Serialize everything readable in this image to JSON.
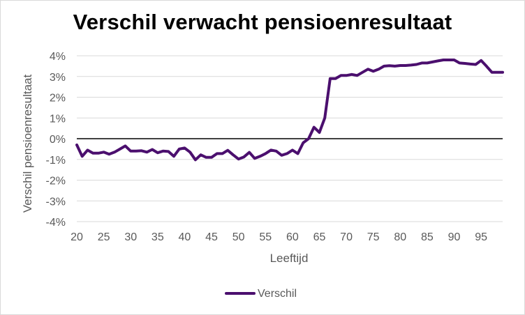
{
  "chart_data": {
    "type": "line",
    "title": "Verschil verwacht pensioenresultaat",
    "xlabel": "Leeftijd",
    "ylabel": "Verschil pensioenresultaat",
    "xlim": [
      20,
      99
    ],
    "ylim": [
      -0.04,
      0.04
    ],
    "x_ticks": [
      20,
      25,
      30,
      35,
      40,
      45,
      50,
      55,
      60,
      65,
      70,
      75,
      80,
      85,
      90,
      95
    ],
    "x_tick_labels": [
      "20",
      "25",
      "30",
      "35",
      "40",
      "45",
      "50",
      "55",
      "60",
      "65",
      "70",
      "75",
      "80",
      "85",
      "90",
      "95"
    ],
    "y_ticks": [
      0.04,
      0.03,
      0.02,
      0.01,
      0,
      -0.01,
      -0.02,
      -0.03,
      -0.04
    ],
    "y_tick_labels": [
      "4%",
      "3%",
      "2%",
      "1%",
      "0%",
      "-1%",
      "-2%",
      "-3%",
      "-4%"
    ],
    "grid": "horizontal",
    "zero_line": true,
    "legend_position": "bottom",
    "series": [
      {
        "name": "Verschil",
        "color": "#4b0f6e",
        "x": [
          20,
          21,
          22,
          23,
          24,
          25,
          26,
          27,
          28,
          29,
          30,
          31,
          32,
          33,
          34,
          35,
          36,
          37,
          38,
          39,
          40,
          41,
          42,
          43,
          44,
          45,
          46,
          47,
          48,
          49,
          50,
          51,
          52,
          53,
          54,
          55,
          56,
          57,
          58,
          59,
          60,
          61,
          62,
          63,
          64,
          65,
          66,
          67,
          68,
          69,
          70,
          71,
          72,
          73,
          74,
          75,
          76,
          77,
          78,
          79,
          80,
          81,
          82,
          83,
          84,
          85,
          86,
          87,
          88,
          89,
          90,
          91,
          92,
          93,
          94,
          95,
          96,
          97,
          98,
          99
        ],
        "values": [
          -0.003,
          -0.0085,
          -0.0055,
          -0.007,
          -0.007,
          -0.0065,
          -0.0075,
          -0.0065,
          -0.005,
          -0.0035,
          -0.006,
          -0.006,
          -0.0058,
          -0.0065,
          -0.0052,
          -0.0068,
          -0.006,
          -0.0062,
          -0.0085,
          -0.005,
          -0.0045,
          -0.0065,
          -0.0102,
          -0.0078,
          -0.009,
          -0.009,
          -0.0072,
          -0.0072,
          -0.0056,
          -0.0078,
          -0.0098,
          -0.0088,
          -0.0066,
          -0.0095,
          -0.0085,
          -0.0072,
          -0.0055,
          -0.006,
          -0.008,
          -0.0072,
          -0.0055,
          -0.0072,
          -0.002,
          0,
          0.0055,
          0.003,
          0.01,
          0.029,
          0.029,
          0.0305,
          0.0305,
          0.031,
          0.0305,
          0.032,
          0.0335,
          0.0325,
          0.0335,
          0.035,
          0.0352,
          0.035,
          0.0353,
          0.0353,
          0.0355,
          0.0358,
          0.0365,
          0.0365,
          0.037,
          0.0375,
          0.038,
          0.038,
          0.038,
          0.0365,
          0.0363,
          0.036,
          0.0358,
          0.0377,
          0.035,
          0.032,
          0.032,
          0.032
        ]
      }
    ]
  }
}
